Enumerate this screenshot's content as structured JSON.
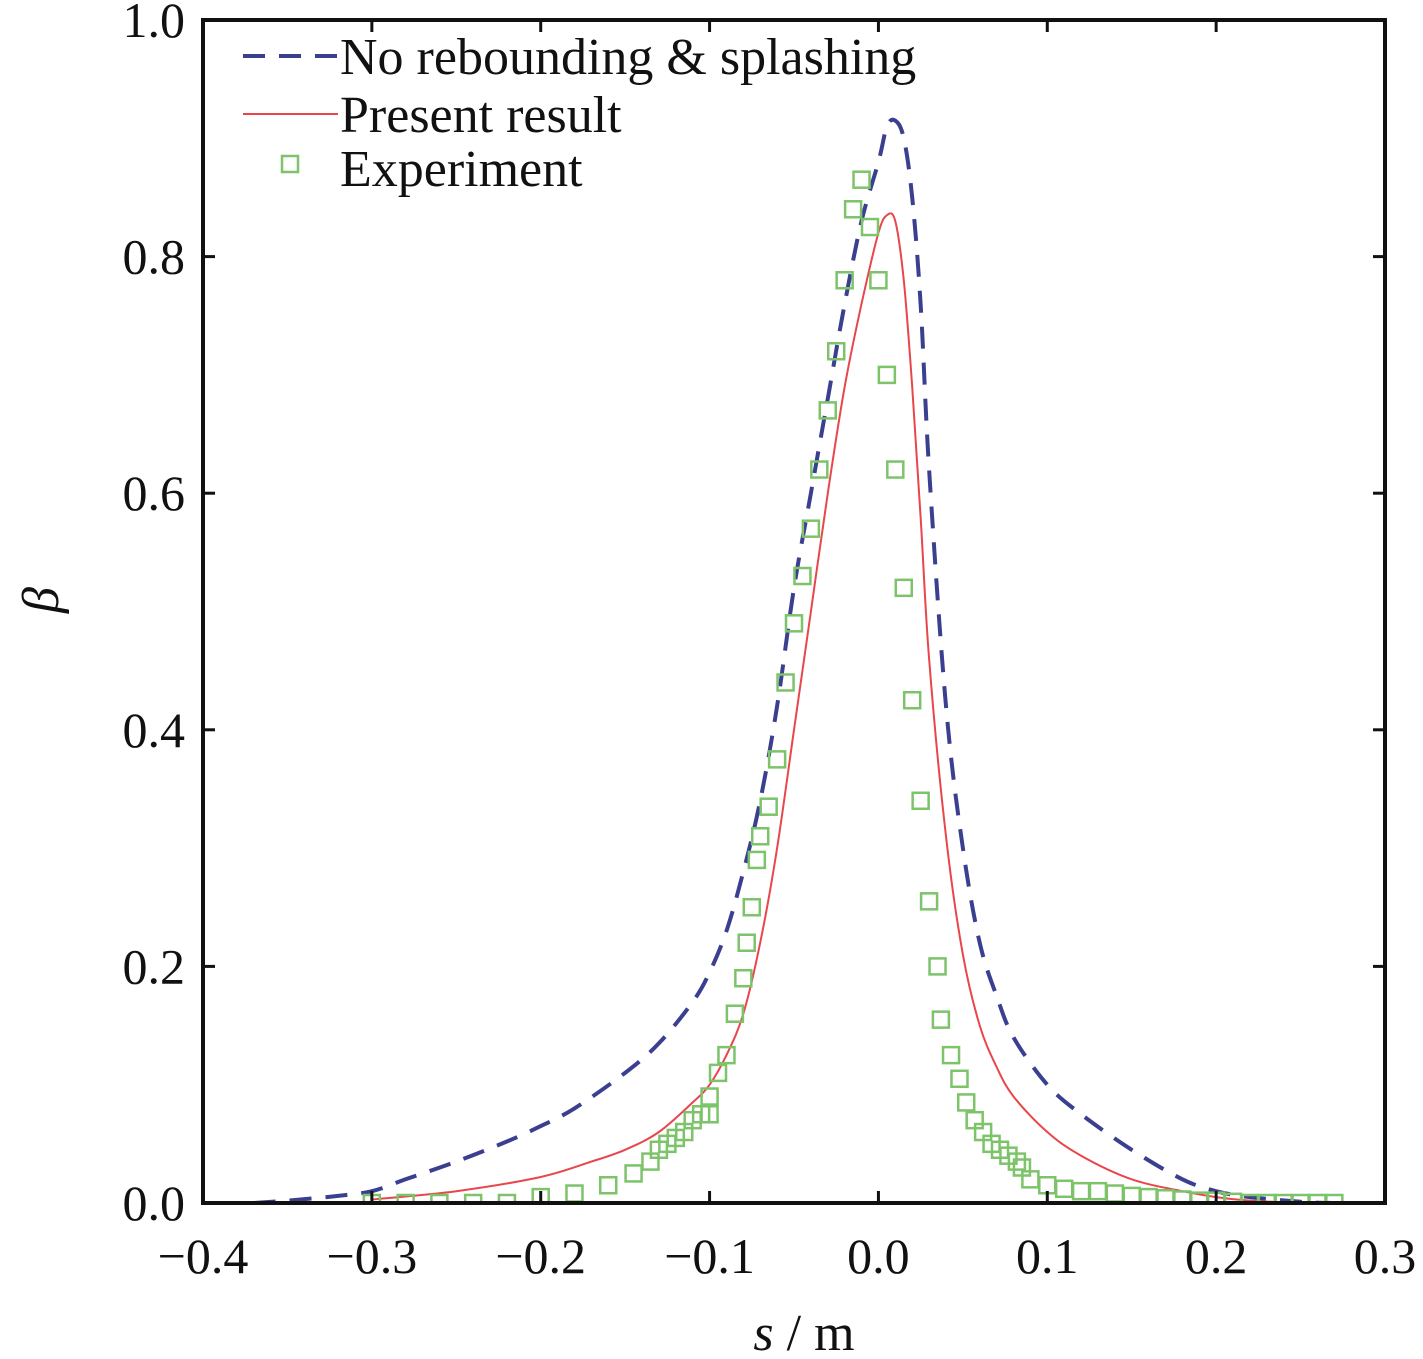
{
  "chart_data": {
    "type": "line",
    "xlabel": {
      "symbol": "s",
      "unit": " / m"
    },
    "ylabel": "β",
    "xlim": [
      -0.4,
      0.3
    ],
    "ylim": [
      0.0,
      1.0
    ],
    "xticks": [
      "−0.4",
      "−0.3",
      "−0.2",
      "−0.1",
      "0.0",
      "0.1",
      "0.2",
      "0.3"
    ],
    "yticks": [
      "0.0",
      "0.2",
      "0.4",
      "0.6",
      "0.8",
      "1.0"
    ],
    "grid": false,
    "legend_position": "top-left",
    "series": [
      {
        "name": "No rebounding & splashing",
        "style": "dashed",
        "color": "#3b3f8f",
        "x": [
          -0.37,
          -0.35,
          -0.32,
          -0.3,
          -0.28,
          -0.25,
          -0.22,
          -0.2,
          -0.18,
          -0.15,
          -0.13,
          -0.11,
          -0.1,
          -0.09,
          -0.08,
          -0.07,
          -0.06,
          -0.05,
          -0.04,
          -0.03,
          -0.02,
          -0.01,
          0.0,
          0.005,
          0.01,
          0.015,
          0.02,
          0.025,
          0.03,
          0.04,
          0.05,
          0.06,
          0.07,
          0.08,
          0.1,
          0.12,
          0.15,
          0.18,
          0.2,
          0.22,
          0.25,
          0.27
        ],
        "y": [
          0.0,
          0.002,
          0.006,
          0.01,
          0.02,
          0.035,
          0.052,
          0.065,
          0.08,
          0.11,
          0.135,
          0.17,
          0.195,
          0.23,
          0.28,
          0.34,
          0.42,
          0.52,
          0.6,
          0.68,
          0.76,
          0.83,
          0.88,
          0.91,
          0.915,
          0.9,
          0.85,
          0.76,
          0.62,
          0.42,
          0.3,
          0.22,
          0.175,
          0.14,
          0.1,
          0.075,
          0.045,
          0.02,
          0.01,
          0.005,
          0.001,
          0.0
        ]
      },
      {
        "name": "Present result",
        "style": "solid",
        "color": "#e8464a",
        "x": [
          -0.3,
          -0.25,
          -0.2,
          -0.17,
          -0.15,
          -0.13,
          -0.11,
          -0.1,
          -0.09,
          -0.08,
          -0.07,
          -0.06,
          -0.05,
          -0.04,
          -0.03,
          -0.02,
          -0.01,
          0.0,
          0.005,
          0.01,
          0.015,
          0.02,
          0.025,
          0.03,
          0.04,
          0.05,
          0.06,
          0.07,
          0.08,
          0.1,
          0.12,
          0.15,
          0.18,
          0.2,
          0.22,
          0.25
        ],
        "y": [
          0.003,
          0.01,
          0.022,
          0.035,
          0.045,
          0.06,
          0.085,
          0.1,
          0.125,
          0.16,
          0.22,
          0.3,
          0.4,
          0.5,
          0.6,
          0.69,
          0.76,
          0.82,
          0.835,
          0.83,
          0.78,
          0.69,
          0.58,
          0.46,
          0.31,
          0.21,
          0.15,
          0.115,
          0.09,
          0.06,
          0.04,
          0.02,
          0.01,
          0.005,
          0.002,
          0.0
        ]
      },
      {
        "name": "Experiment",
        "style": "markers",
        "color": "#7cc36a",
        "x": [
          -0.3,
          -0.28,
          -0.26,
          -0.24,
          -0.22,
          -0.2,
          -0.18,
          -0.16,
          -0.145,
          -0.135,
          -0.13,
          -0.125,
          -0.12,
          -0.115,
          -0.11,
          -0.105,
          -0.1,
          -0.1,
          -0.095,
          -0.09,
          -0.085,
          -0.08,
          -0.078,
          -0.075,
          -0.072,
          -0.07,
          -0.065,
          -0.06,
          -0.055,
          -0.05,
          -0.045,
          -0.04,
          -0.035,
          -0.03,
          -0.025,
          -0.02,
          -0.015,
          -0.01,
          -0.005,
          0.0,
          0.005,
          0.01,
          0.015,
          0.02,
          0.025,
          0.03,
          0.035,
          0.037,
          0.043,
          0.048,
          0.052,
          0.057,
          0.062,
          0.067,
          0.072,
          0.077,
          0.082,
          0.085,
          0.09,
          0.1,
          0.11,
          0.12,
          0.13,
          0.14,
          0.15,
          0.16,
          0.17,
          0.18,
          0.19,
          0.2,
          0.21,
          0.22,
          0.23,
          0.24,
          0.25,
          0.26,
          0.27
        ],
        "y": [
          0.0,
          0.0,
          0.0,
          0.0,
          0.0,
          0.005,
          0.008,
          0.015,
          0.025,
          0.035,
          0.045,
          0.05,
          0.055,
          0.06,
          0.07,
          0.075,
          0.075,
          0.09,
          0.11,
          0.125,
          0.16,
          0.19,
          0.22,
          0.25,
          0.29,
          0.31,
          0.335,
          0.375,
          0.44,
          0.49,
          0.53,
          0.57,
          0.62,
          0.67,
          0.72,
          0.78,
          0.84,
          0.865,
          0.825,
          0.78,
          0.7,
          0.62,
          0.52,
          0.425,
          0.34,
          0.255,
          0.2,
          0.155,
          0.125,
          0.105,
          0.085,
          0.07,
          0.06,
          0.05,
          0.045,
          0.04,
          0.035,
          0.03,
          0.02,
          0.015,
          0.012,
          0.01,
          0.01,
          0.008,
          0.006,
          0.005,
          0.004,
          0.003,
          0.002,
          0.002,
          0.001,
          0.0,
          0.0,
          0.0,
          0.0,
          0.0,
          0.0
        ]
      }
    ]
  }
}
